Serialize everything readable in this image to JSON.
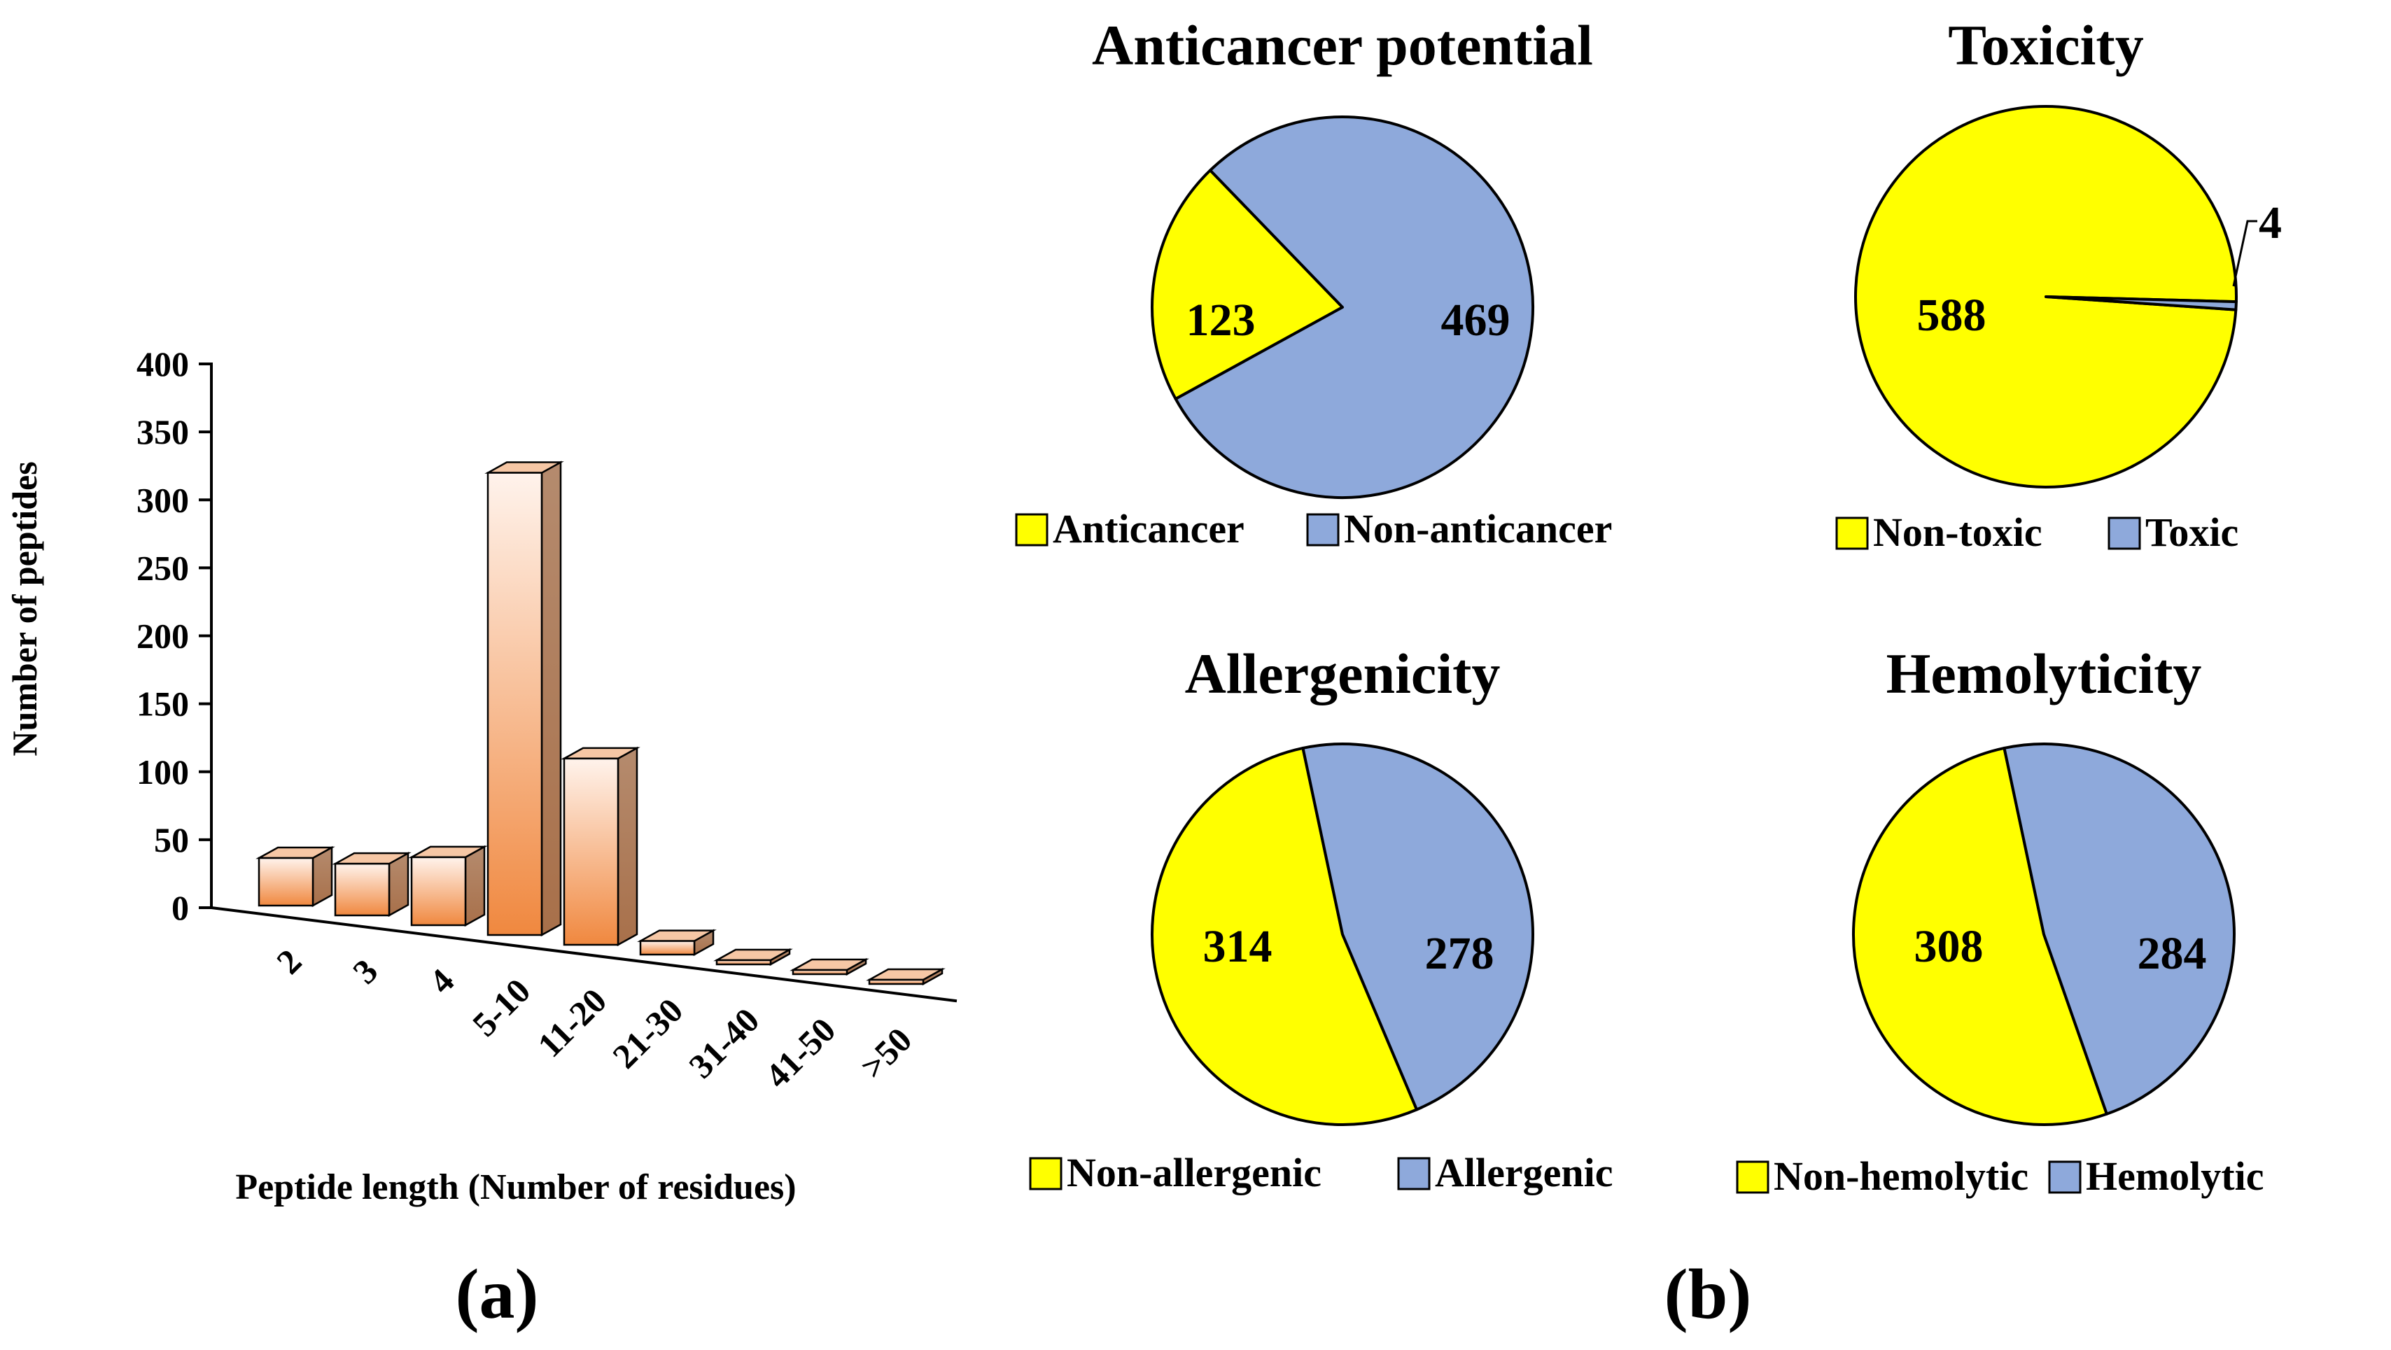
{
  "colors": {
    "yellow": "#FFFF00",
    "blue": "#8EA9DB",
    "bar_front_light": "#FFF3EC",
    "bar_front_dark": "#F0883F",
    "bar_side_light": "#B58B6E",
    "bar_side_dark": "#A8704A",
    "bar_top": "#F6C7A5"
  },
  "panel_labels": {
    "a": "(a)",
    "b": "(b)"
  },
  "chart_data": [
    {
      "type": "bar",
      "id": "peptide-length",
      "title": "",
      "categories": [
        "2",
        "3",
        "4",
        "5-10",
        "11-20",
        "21-30",
        "31-40",
        "41-50",
        ">50"
      ],
      "values": [
        35,
        38,
        50,
        340,
        137,
        10,
        2,
        1,
        1
      ],
      "xlabel": "Peptide length (Number of residues)",
      "ylabel": "Number of peptides",
      "ylim": [
        0,
        400
      ],
      "yticks": [
        "0",
        "50",
        "100",
        "150",
        "200",
        "250",
        "300",
        "350",
        "400"
      ],
      "grid": false,
      "style": "3d"
    },
    {
      "type": "pie",
      "id": "anticancer",
      "title": "Anticancer potential",
      "labels": [
        "Anticancer",
        "Non-anticancer"
      ],
      "values": [
        123,
        469
      ],
      "value_labels": [
        "123",
        "469"
      ],
      "legend": "bottom"
    },
    {
      "type": "pie",
      "id": "toxicity",
      "title": "Toxicity",
      "labels": [
        "Non-toxic",
        "Toxic"
      ],
      "values": [
        588,
        4
      ],
      "value_labels": [
        "588",
        "4"
      ],
      "legend": "bottom"
    },
    {
      "type": "pie",
      "id": "allergenicity",
      "title": "Allergenicity",
      "labels": [
        "Non-allergenic",
        "Allergenic"
      ],
      "values": [
        314,
        278
      ],
      "value_labels": [
        "314",
        "278"
      ],
      "legend": "bottom"
    },
    {
      "type": "pie",
      "id": "hemolyticity",
      "title": "Hemolyticity",
      "labels": [
        "Non-hemolytic",
        "Hemolytic"
      ],
      "values": [
        308,
        284
      ],
      "value_labels": [
        "308",
        "284"
      ],
      "legend": "bottom"
    }
  ]
}
